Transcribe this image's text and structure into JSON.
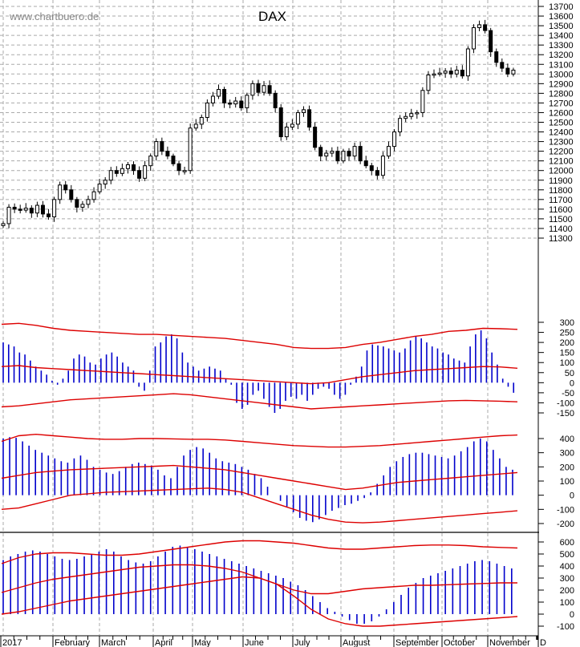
{
  "watermark": "www.chartbuero.de",
  "title": "DAX",
  "colors": {
    "price": "#000000",
    "histogram": "#0000cc",
    "bands": "#dd0000",
    "grid": "#aaaaaa",
    "axis": "#000000"
  },
  "x_axis": {
    "labels": [
      "2017",
      "February",
      "March",
      "April",
      "May",
      "June",
      "July",
      "August",
      "September",
      "October",
      "November",
      "D"
    ],
    "label_x": [
      3,
      68,
      126,
      193,
      242,
      305,
      367,
      427,
      493,
      553,
      610,
      673
    ]
  },
  "chart_data": [
    {
      "type": "candlestick",
      "title": "DAX",
      "ylim": [
        11300,
        13700
      ],
      "yticks": [
        13700,
        13600,
        13500,
        13400,
        13300,
        13200,
        13100,
        13000,
        12900,
        12800,
        12700,
        12600,
        12500,
        12400,
        12300,
        12200,
        12100,
        12000,
        11900,
        11800,
        11700,
        11600,
        11500,
        11400,
        11300
      ],
      "xlabels": [
        "2017",
        "February",
        "March",
        "April",
        "May",
        "June",
        "July",
        "August",
        "September",
        "October",
        "November",
        "D"
      ],
      "close_approx": [
        11450,
        11620,
        11600,
        11590,
        11610,
        11560,
        11640,
        11550,
        11520,
        11700,
        11850,
        11800,
        11700,
        11620,
        11650,
        11700,
        11780,
        11860,
        11900,
        12000,
        11970,
        12020,
        12060,
        12000,
        11920,
        12050,
        12150,
        12300,
        12200,
        12150,
        12070,
        12000,
        12000,
        12440,
        12480,
        12550,
        12700,
        12770,
        12840,
        12700,
        12690,
        12720,
        12650,
        12780,
        12900,
        12810,
        12880,
        12800,
        12650,
        12350,
        12450,
        12480,
        12600,
        12630,
        12450,
        12240,
        12150,
        12180,
        12200,
        12100,
        12200,
        12150,
        12250,
        12100,
        12050,
        12000,
        11950,
        12150,
        12250,
        12400,
        12540,
        12560,
        12590,
        12600,
        12830,
        12990,
        13000,
        13010,
        13030,
        13000,
        13040,
        12980,
        13260,
        13480,
        13510,
        13450,
        13230,
        13120,
        13060,
        13000,
        13040
      ],
      "panels": [
        {
          "name": "oscillator-1",
          "type": "bar+bands",
          "yticks": [
            300,
            250,
            200,
            150,
            100,
            50,
            0,
            -50,
            -100,
            -150
          ],
          "ylim": [
            -170,
            320
          ],
          "histogram_approx": [
            200,
            190,
            180,
            150,
            140,
            110,
            80,
            60,
            40,
            10,
            -10,
            20,
            60,
            120,
            140,
            130,
            100,
            90,
            120,
            140,
            150,
            130,
            100,
            80,
            60,
            -20,
            -40,
            60,
            180,
            200,
            230,
            240,
            220,
            150,
            100,
            80,
            60,
            70,
            80,
            70,
            60,
            20,
            -10,
            -100,
            -130,
            -110,
            -60,
            -40,
            -80,
            -120,
            -150,
            -130,
            -90,
            -70,
            -80,
            -60,
            -90,
            -60,
            -30,
            -20,
            -30,
            -60,
            -80,
            -60,
            -10,
            30,
            80,
            160,
            190,
            185,
            180,
            170,
            160,
            150,
            170,
            210,
            230,
            220,
            200,
            180,
            170,
            150,
            140,
            120,
            110,
            100,
            180,
            240,
            260,
            220,
            150,
            90,
            20,
            -20,
            -50
          ],
          "upper_band_approx": [
            290,
            295,
            285,
            270,
            260,
            255,
            250,
            245,
            240,
            240,
            235,
            230,
            225,
            220,
            210,
            200,
            190,
            175,
            170,
            170,
            175,
            190,
            200,
            215,
            230,
            240,
            255,
            260,
            270,
            268,
            265
          ],
          "mid_band_approx": [
            80,
            85,
            75,
            70,
            65,
            60,
            55,
            50,
            45,
            40,
            35,
            30,
            25,
            20,
            15,
            10,
            5,
            0,
            -5,
            0,
            15,
            30,
            40,
            50,
            60,
            65,
            70,
            75,
            80,
            78,
            72
          ],
          "lower_band_approx": [
            -120,
            -115,
            -105,
            -95,
            -85,
            -80,
            -75,
            -70,
            -65,
            -60,
            -55,
            -60,
            -70,
            -80,
            -90,
            -100,
            -110,
            -120,
            -130,
            -125,
            -120,
            -115,
            -110,
            -105,
            -100,
            -95,
            -90,
            -88,
            -90,
            -92,
            -95
          ]
        },
        {
          "name": "oscillator-2",
          "type": "bar+bands",
          "yticks": [
            400,
            300,
            200,
            100,
            0,
            -100,
            -200
          ],
          "ylim": [
            -260,
            440
          ],
          "histogram_approx": [
            400,
            410,
            405,
            380,
            350,
            320,
            300,
            280,
            260,
            240,
            230,
            260,
            280,
            250,
            200,
            180,
            160,
            150,
            170,
            200,
            220,
            230,
            220,
            210,
            180,
            140,
            120,
            200,
            280,
            320,
            340,
            330,
            300,
            260,
            240,
            230,
            220,
            200,
            180,
            150,
            120,
            60,
            0,
            -40,
            -80,
            -120,
            -160,
            -180,
            -190,
            -170,
            -140,
            -110,
            -90,
            -70,
            -60,
            -40,
            -20,
            20,
            80,
            140,
            200,
            240,
            270,
            290,
            300,
            300,
            290,
            280,
            270,
            260,
            280,
            310,
            340,
            380,
            400,
            380,
            320,
            260,
            200,
            180
          ],
          "upper_band_approx": [
            380,
            420,
            430,
            420,
            410,
            400,
            395,
            395,
            400,
            400,
            398,
            395,
            395,
            390,
            380,
            370,
            360,
            350,
            345,
            340,
            340,
            345,
            350,
            360,
            370,
            380,
            390,
            400,
            410,
            420,
            425
          ],
          "mid_band_approx": [
            120,
            140,
            160,
            170,
            180,
            185,
            190,
            195,
            200,
            205,
            210,
            200,
            190,
            180,
            160,
            140,
            120,
            100,
            80,
            60,
            40,
            50,
            70,
            90,
            100,
            110,
            120,
            130,
            140,
            150,
            160
          ],
          "lower_band_approx": [
            -100,
            -90,
            -60,
            -30,
            0,
            10,
            20,
            25,
            30,
            35,
            40,
            45,
            50,
            40,
            20,
            -20,
            -60,
            -100,
            -140,
            -170,
            -190,
            -195,
            -190,
            -180,
            -170,
            -160,
            -150,
            -140,
            -130,
            -120,
            -110
          ]
        },
        {
          "name": "oscillator-3",
          "type": "bar+bands",
          "yticks": [
            600,
            500,
            400,
            300,
            200,
            100,
            0,
            -100
          ],
          "ylim": [
            -130,
            640
          ],
          "histogram_approx": [
            450,
            480,
            500,
            520,
            530,
            520,
            500,
            480,
            460,
            450,
            460,
            480,
            500,
            520,
            540,
            520,
            480,
            450,
            430,
            420,
            440,
            480,
            520,
            560,
            570,
            560,
            540,
            520,
            500,
            480,
            460,
            440,
            420,
            400,
            380,
            360,
            340,
            320,
            300,
            270,
            240,
            200,
            150,
            100,
            50,
            20,
            -20,
            -50,
            -80,
            -80,
            -60,
            -20,
            40,
            100,
            160,
            220,
            260,
            300,
            320,
            340,
            360,
            380,
            400,
            420,
            440,
            450,
            440,
            420,
            400,
            380
          ],
          "upper_band_approx": [
            420,
            470,
            500,
            510,
            510,
            500,
            490,
            490,
            500,
            520,
            540,
            560,
            580,
            600,
            610,
            610,
            600,
            590,
            570,
            550,
            540,
            540,
            550,
            560,
            570,
            575,
            575,
            570,
            560,
            555,
            550
          ],
          "mid_band_approx": [
            180,
            220,
            260,
            290,
            310,
            330,
            350,
            370,
            390,
            400,
            410,
            410,
            400,
            380,
            350,
            300,
            250,
            200,
            170,
            170,
            190,
            210,
            220,
            230,
            240,
            240,
            245,
            250,
            255,
            260,
            260
          ],
          "lower_band_approx": [
            0,
            20,
            50,
            80,
            110,
            130,
            150,
            170,
            190,
            210,
            230,
            250,
            270,
            290,
            310,
            300,
            250,
            150,
            40,
            -40,
            -80,
            -100,
            -100,
            -90,
            -80,
            -70,
            -60,
            -50,
            -40,
            -30,
            -20
          ]
        }
      ]
    }
  ]
}
